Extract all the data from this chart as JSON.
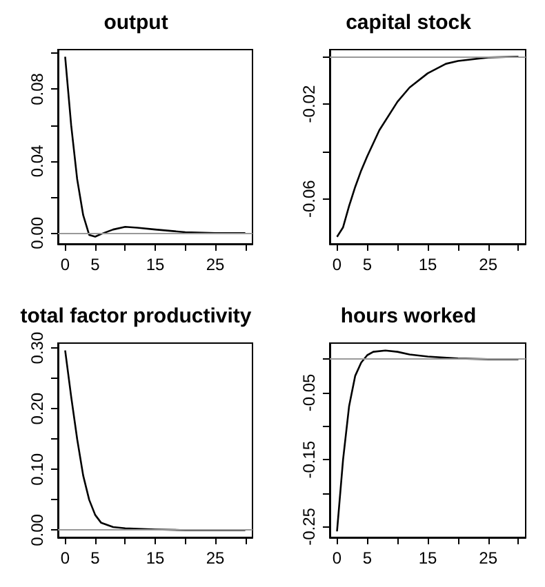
{
  "chart_data": [
    {
      "type": "line",
      "title": "output",
      "x": [
        0,
        1,
        2,
        3,
        4,
        5,
        6,
        8,
        10,
        12,
        15,
        20,
        25,
        30
      ],
      "xlim": [
        -1.2,
        31.2
      ],
      "xticks": [
        0,
        5,
        {
          "value": 10,
          "label": null
        },
        15,
        {
          "value": 20,
          "label": null
        },
        25,
        {
          "value": 30,
          "label": null
        }
      ],
      "ylim": [
        -0.006,
        0.102
      ],
      "yticks": [
        {
          "value": 0,
          "label": "0.00"
        },
        {
          "value": 0.02,
          "label": null
        },
        0.04,
        {
          "value": 0.06,
          "label": null
        },
        0.08,
        {
          "value": 0.1,
          "label": null
        }
      ],
      "series": [
        {
          "color": "#000000",
          "values": [
            0.098,
            0.06,
            0.03,
            0.01,
            -0.001,
            -0.002,
            -0.0005,
            0.002,
            0.0035,
            0.003,
            0.002,
            0.0005,
            0,
            0
          ]
        }
      ],
      "ref_lines": [
        {
          "axis": "y",
          "value": 0,
          "color": "#999999"
        }
      ],
      "marker": "none"
    },
    {
      "type": "line",
      "title": "capital stock",
      "x": [
        0,
        1,
        2,
        3,
        4,
        5,
        7,
        10,
        12,
        15,
        18,
        20,
        25,
        30
      ],
      "xlim": [
        -1.2,
        31.2
      ],
      "xticks": [
        0,
        5,
        {
          "value": 10,
          "label": null
        },
        15,
        {
          "value": 20,
          "label": null
        },
        25,
        {
          "value": 30,
          "label": null
        }
      ],
      "ylim": [
        -0.079,
        0.003
      ],
      "yticks": [
        {
          "value": 0,
          "label": null
        },
        -0.02,
        {
          "value": -0.04,
          "label": null
        },
        -0.06
      ],
      "series": [
        {
          "color": "#000000",
          "values": [
            -0.076,
            -0.072,
            -0.063,
            -0.055,
            -0.048,
            -0.042,
            -0.031,
            -0.019,
            -0.013,
            -0.007,
            -0.003,
            -0.0018,
            -0.0003,
            0
          ]
        }
      ],
      "ref_lines": [
        {
          "axis": "y",
          "value": 0,
          "color": "#999999"
        }
      ],
      "marker": "none"
    },
    {
      "type": "line",
      "title": "total factor productivity",
      "x": [
        0,
        1,
        2,
        3,
        4,
        5,
        6,
        8,
        10,
        15,
        20,
        30
      ],
      "xlim": [
        -1.2,
        31.2
      ],
      "xticks": [
        0,
        5,
        {
          "value": 10,
          "label": null
        },
        15,
        {
          "value": 20,
          "label": null
        },
        25,
        {
          "value": 30,
          "label": null
        }
      ],
      "ylim": [
        -0.012,
        0.308
      ],
      "yticks": [
        {
          "value": 0,
          "label": "0.00"
        },
        {
          "value": 0.05,
          "label": null
        },
        {
          "value": 0.1,
          "label": "0.10"
        },
        {
          "value": 0.15,
          "label": null
        },
        {
          "value": 0.2,
          "label": "0.20"
        },
        {
          "value": 0.25,
          "label": null
        },
        {
          "value": 0.3,
          "label": "0.30"
        }
      ],
      "series": [
        {
          "color": "#000000",
          "values": [
            0.296,
            0.22,
            0.15,
            0.09,
            0.05,
            0.025,
            0.012,
            0.005,
            0.003,
            0.001,
            0,
            0
          ]
        }
      ],
      "ref_lines": [
        {
          "axis": "y",
          "value": 0,
          "color": "#999999"
        }
      ],
      "marker": "none"
    },
    {
      "type": "line",
      "title": "hours worked",
      "x": [
        0,
        1,
        2,
        3,
        4,
        5,
        6,
        8,
        10,
        12,
        15,
        20,
        25,
        30
      ],
      "xlim": [
        -1.2,
        31.2
      ],
      "xticks": [
        0,
        5,
        {
          "value": 10,
          "label": null
        },
        15,
        {
          "value": 20,
          "label": null
        },
        25,
        {
          "value": 30,
          "label": null
        }
      ],
      "ylim": [
        -0.266,
        0.024
      ],
      "yticks": [
        {
          "value": 0,
          "label": null
        },
        -0.05,
        {
          "value": -0.1,
          "label": null
        },
        -0.15,
        {
          "value": -0.2,
          "label": null
        },
        -0.25
      ],
      "series": [
        {
          "color": "#000000",
          "values": [
            -0.257,
            -0.15,
            -0.07,
            -0.025,
            -0.005,
            0.006,
            0.011,
            0.013,
            0.011,
            0.007,
            0.004,
            0.001,
            0,
            0
          ]
        }
      ],
      "ref_lines": [
        {
          "axis": "y",
          "value": 0,
          "color": "#999999"
        }
      ],
      "marker": "none"
    }
  ]
}
